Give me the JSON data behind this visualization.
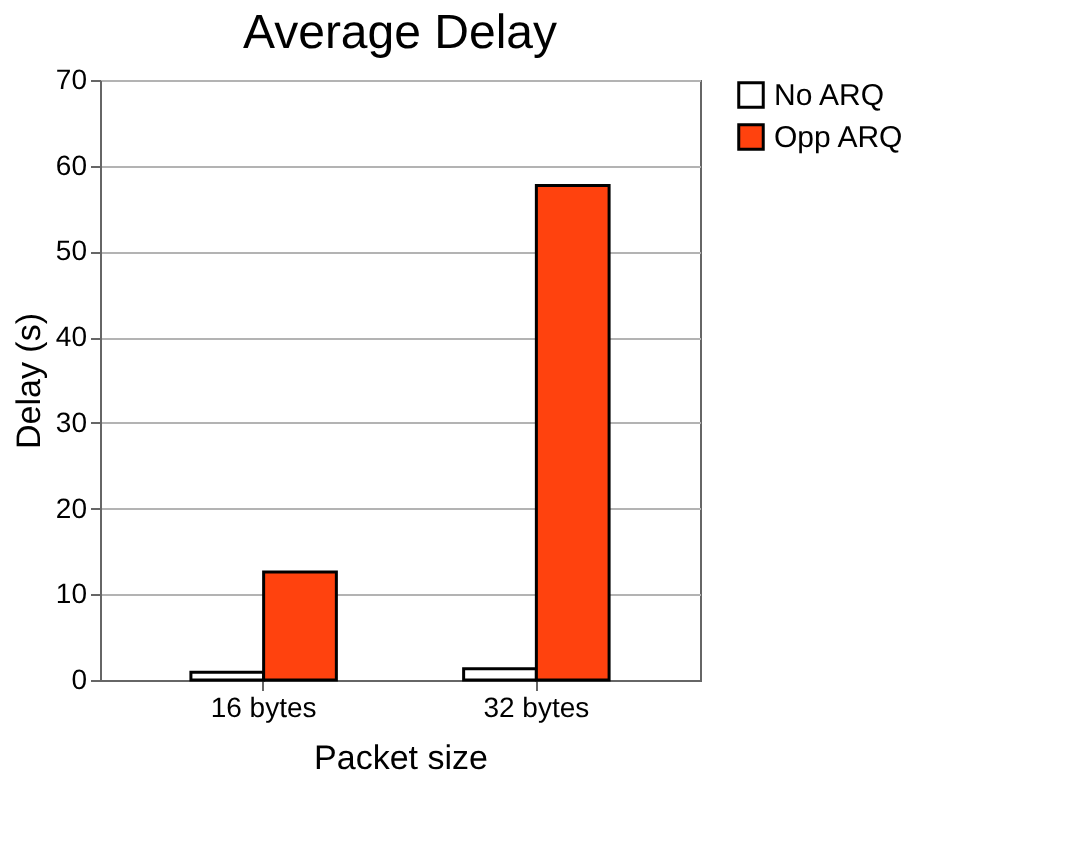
{
  "chart_data": {
    "type": "bar",
    "title": "Average Delay",
    "xlabel": "Packet size",
    "ylabel": "Delay (s)",
    "categories": [
      "16 bytes",
      "32 bytes"
    ],
    "series": [
      {
        "name": "No ARQ",
        "color": "#ffffff",
        "values": [
          0.9,
          1.3
        ]
      },
      {
        "name": "Opp ARQ",
        "color": "#ff420e",
        "values": [
          12.6,
          57.7
        ]
      }
    ],
    "ylim": [
      0,
      70
    ],
    "yticks": [
      0,
      10,
      20,
      30,
      40,
      50,
      60,
      70
    ],
    "grid": "y",
    "legend": "right"
  }
}
